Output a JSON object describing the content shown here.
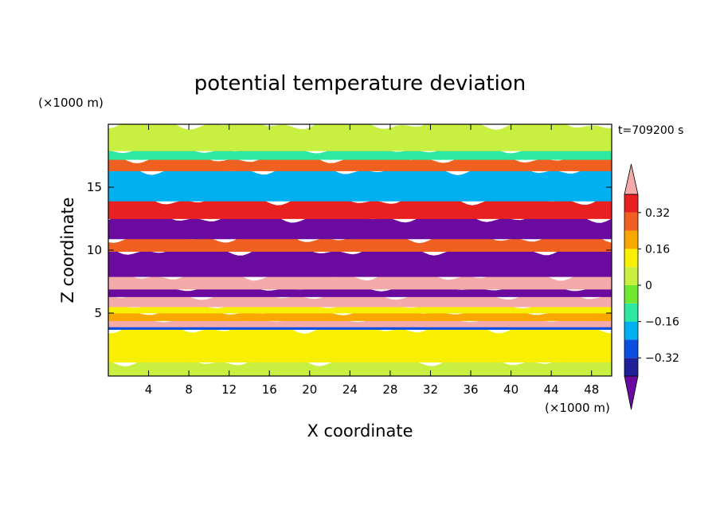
{
  "chart_data": {
    "type": "heatmap",
    "title": "potential temperature deviation",
    "time_label": "t=709200 s",
    "xlabel": "X coordinate",
    "ylabel": "Z coordinate",
    "x_unit": "(×1000 m)",
    "y_unit": "(×1000 m)",
    "xlim": [
      0,
      50
    ],
    "ylim": [
      0,
      20
    ],
    "xticks": [
      4,
      8,
      12,
      16,
      20,
      24,
      28,
      32,
      36,
      40,
      44,
      48
    ],
    "yticks": [
      5,
      10,
      15
    ],
    "colorbar": {
      "levels": [
        -0.4,
        -0.32,
        -0.24,
        -0.16,
        -0.08,
        0,
        0.08,
        0.16,
        0.24,
        0.32,
        0.4
      ],
      "labels": [
        "0.32",
        "0.16",
        "0",
        "−0.16",
        "−0.32"
      ],
      "colors": [
        "#6a0a9e",
        "#1f1f9a",
        "#0a4fe0",
        "#00b0f0",
        "#2ee8a0",
        "#6ee830",
        "#c8f040",
        "#f8f000",
        "#f8a800",
        "#f06020",
        "#e82020",
        "#f5aaaa"
      ],
      "extend": "both"
    },
    "bands": [
      {
        "z": [
          0.0,
          1.2
        ],
        "value": 0.04
      },
      {
        "z": [
          1.2,
          3.8
        ],
        "value": 0.1
      },
      {
        "z": [
          3.8,
          4.0
        ],
        "value": -0.3
      },
      {
        "z": [
          4.0,
          4.5
        ],
        "value": 0.45
      },
      {
        "z": [
          4.5,
          5.1
        ],
        "value": 0.18
      },
      {
        "z": [
          5.1,
          5.6
        ],
        "value": 0.12
      },
      {
        "z": [
          5.6,
          6.4
        ],
        "value": 0.45
      },
      {
        "z": [
          6.4,
          7.0
        ],
        "value": -0.42
      },
      {
        "z": [
          7.0,
          8.0
        ],
        "value": 0.45
      },
      {
        "z": [
          8.0,
          10.0
        ],
        "value": -0.42
      },
      {
        "z": [
          10.0,
          11.0
        ],
        "value": 0.28
      },
      {
        "z": [
          11.0,
          12.6
        ],
        "value": -0.42
      },
      {
        "z": [
          12.6,
          14.0
        ],
        "value": 0.35
      },
      {
        "z": [
          14.0,
          16.4
        ],
        "value": -0.2
      },
      {
        "z": [
          16.4,
          17.3
        ],
        "value": 0.3
      },
      {
        "z": [
          17.3,
          18.0
        ],
        "value": -0.12
      },
      {
        "z": [
          18.0,
          20.0
        ],
        "value": 0.06
      }
    ]
  }
}
